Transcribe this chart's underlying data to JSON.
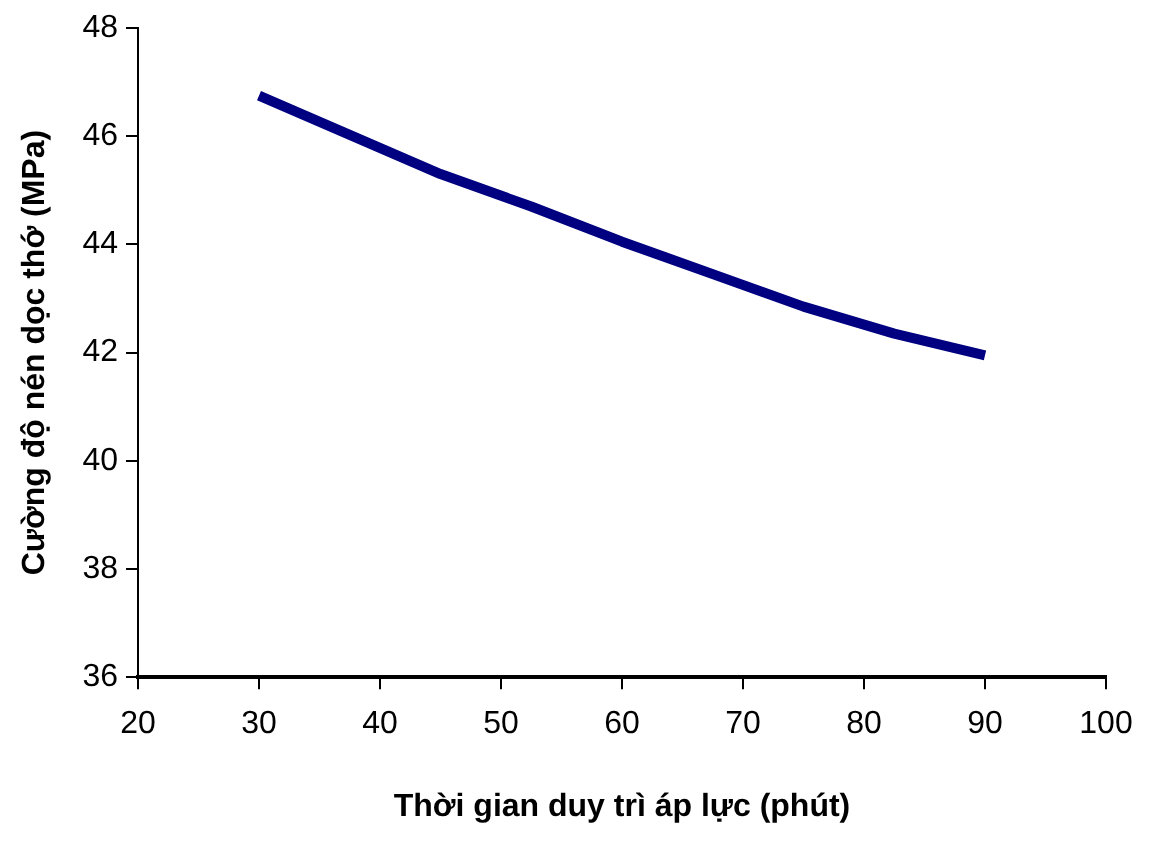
{
  "chart_data": {
    "type": "line",
    "xlabel": "Thời gian duy trì áp lực (phút)",
    "ylabel": "Cường độ nén dọc thớ (MPa)",
    "x": [
      30,
      45,
      52.5,
      60,
      67.5,
      75,
      82.5,
      90
    ],
    "series": [
      {
        "color": "#000080",
        "values": [
          46.75,
          45.3,
          44.7,
          44.05,
          43.45,
          42.85,
          42.35,
          41.95
        ]
      }
    ],
    "xlim": [
      20,
      100
    ],
    "xticks": [
      20,
      30,
      40,
      50,
      60,
      70,
      80,
      90,
      100
    ],
    "ylim": [
      36,
      48
    ],
    "yticks": [
      36,
      38,
      40,
      42,
      44,
      46,
      48
    ],
    "grid": false,
    "legend": false,
    "marker": "none",
    "line_style": "solid"
  }
}
